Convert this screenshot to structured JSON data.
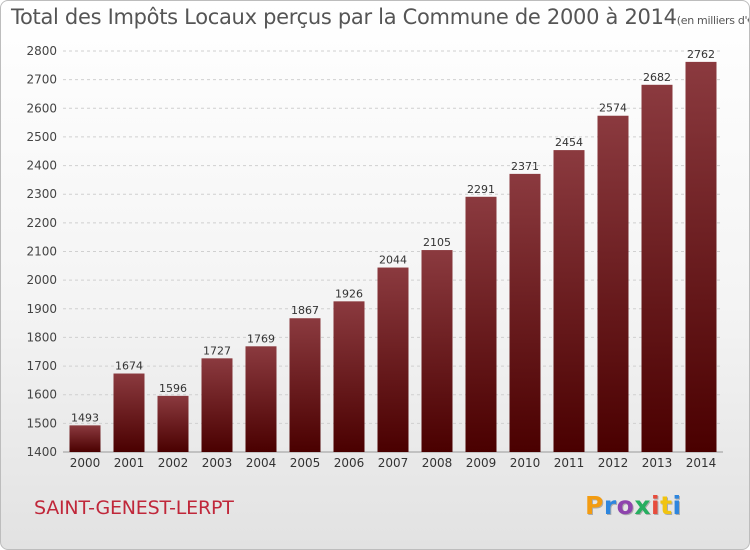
{
  "title": "Total des Impôts Locaux perçus par la Commune de 2000 à 2014",
  "title_unit": "(en milliers d'€)",
  "commune": "SAINT-GENEST-LERPT",
  "logo": {
    "text": "Proxiti",
    "letters": [
      "P",
      "r",
      "o",
      "x",
      "i",
      "t",
      "i"
    ],
    "colors": [
      "#f39c12",
      "#2e86de",
      "#8e44ad",
      "#27ae60",
      "#e74c3c",
      "#f1c40f",
      "#2e86de"
    ]
  },
  "colors": {
    "bar_top": "#8b3a3f",
    "bar_bottom": "#4a0000",
    "title": "#555555",
    "commune": "#c0273a"
  },
  "chart_data": {
    "type": "bar",
    "title": "Total des Impôts Locaux perçus par la Commune de 2000 à 2014",
    "xlabel": "",
    "ylabel": "",
    "ylim": [
      1400,
      2800
    ],
    "yticks": [
      1400,
      1500,
      1600,
      1700,
      1800,
      1900,
      2000,
      2100,
      2200,
      2300,
      2400,
      2500,
      2600,
      2700,
      2800
    ],
    "grid": true,
    "categories": [
      "2000",
      "2001",
      "2002",
      "2003",
      "2004",
      "2005",
      "2006",
      "2007",
      "2008",
      "2009",
      "2010",
      "2011",
      "2012",
      "2013",
      "2014"
    ],
    "values": [
      1493,
      1674,
      1596,
      1727,
      1769,
      1867,
      1926,
      2044,
      2105,
      2291,
      2371,
      2454,
      2574,
      2682,
      2762
    ]
  }
}
